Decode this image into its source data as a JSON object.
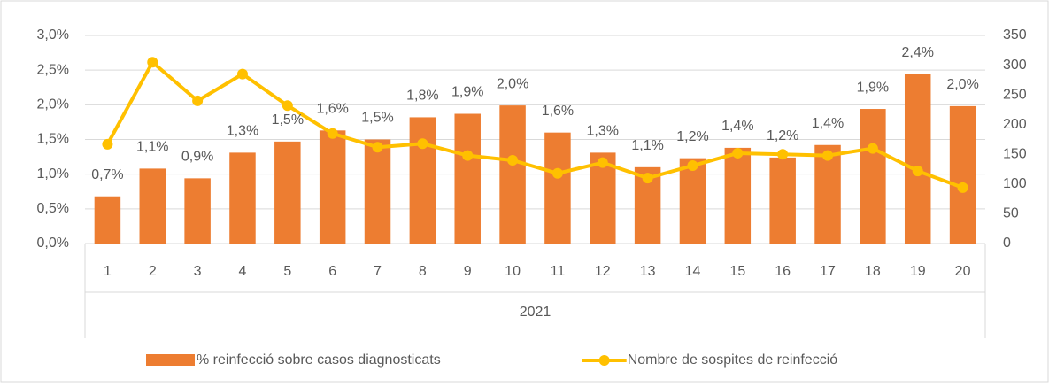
{
  "chart_data": {
    "type": "bar",
    "categories": [
      "1",
      "2",
      "3",
      "4",
      "5",
      "6",
      "7",
      "8",
      "9",
      "10",
      "11",
      "12",
      "13",
      "14",
      "15",
      "16",
      "17",
      "18",
      "19",
      "20"
    ],
    "group_label": "2021",
    "series": [
      {
        "name": "% reinfecció sobre casos diagnosticats",
        "type": "bar",
        "color": "#ed7d31",
        "values": [
          0.68,
          1.08,
          0.94,
          1.31,
          1.47,
          1.63,
          1.5,
          1.82,
          1.87,
          1.99,
          1.6,
          1.31,
          1.1,
          1.23,
          1.38,
          1.24,
          1.42,
          1.94,
          2.44,
          1.98
        ],
        "value_labels": [
          "0,7%",
          "1,1%",
          "0,9%",
          "1,3%",
          "1,5%",
          "1,6%",
          "1,5%",
          "1,8%",
          "1,9%",
          "2,0%",
          "1,6%",
          "1,3%",
          "1,1%",
          "1,2%",
          "1,4%",
          "1,2%",
          "1,4%",
          "1,9%",
          "2,4%",
          "2,0%"
        ]
      },
      {
        "name": "Nombre de sospites de reinfecció",
        "type": "line",
        "axis": "y2",
        "color": "#ffc000",
        "values": [
          167,
          305,
          240,
          285,
          232,
          185,
          162,
          168,
          148,
          140,
          118,
          136,
          110,
          131,
          152,
          150,
          148,
          160,
          122,
          94
        ]
      }
    ],
    "ylim": [
      0,
      3
    ],
    "yticks": [
      {
        "value": 0,
        "label": "0,0%"
      },
      {
        "value": 0.5,
        "label": "0,5%"
      },
      {
        "value": 1,
        "label": "1,0%"
      },
      {
        "value": 1.5,
        "label": "1,5%"
      },
      {
        "value": 2,
        "label": "2,0%"
      },
      {
        "value": 2.5,
        "label": "2,5%"
      },
      {
        "value": 3,
        "label": "3,0%"
      }
    ],
    "y2lim": [
      0,
      350
    ],
    "y2ticks": [
      0,
      50,
      100,
      150,
      200,
      250,
      300,
      350
    ],
    "grid": true,
    "legend": "bottom"
  }
}
